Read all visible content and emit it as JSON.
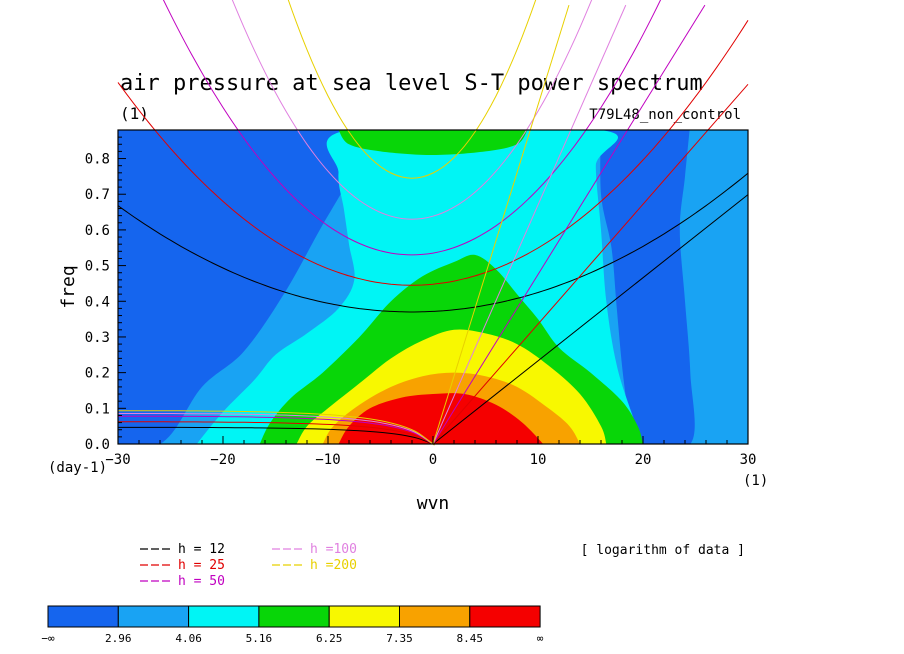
{
  "chart_data": {
    "type": "heatmap",
    "title": "air pressure at sea level S-T power spectrum",
    "title_units": "(1)",
    "subtitle_right": "T79L48_non_control",
    "xlabel": "wvn",
    "ylabel": "freq",
    "x_unit": "(1)",
    "y_unit": "(day-1)",
    "xlim": [
      -30,
      30
    ],
    "ylim": [
      0,
      0.88
    ],
    "xticks": [
      -30,
      -20,
      -10,
      0,
      10,
      20,
      30
    ],
    "xtick_labels": [
      "−30",
      "−20",
      "−10",
      "0",
      "10",
      "20",
      "30"
    ],
    "yticks": [
      0,
      0.1,
      0.2,
      0.3,
      0.4,
      0.5,
      0.6,
      0.7,
      0.8
    ],
    "ytick_labels": [
      "0.0",
      "0.1",
      "0.2",
      "0.3",
      "0.4",
      "0.5",
      "0.6",
      "0.7",
      "0.8"
    ],
    "note": "[ logarithm of data ]",
    "colorbar": {
      "colors": [
        "#1565ee",
        "#19a3f3",
        "#00f5f5",
        "#08d608",
        "#f8f800",
        "#f8a200",
        "#f50000"
      ],
      "edge_labels": [
        "−∞",
        "2.96",
        "4.06",
        "5.16",
        "6.25",
        "7.35",
        "8.45",
        "∞"
      ]
    },
    "contour_bands": [
      {
        "level": 2.96,
        "color": "#19a3f3",
        "x": [
          -32,
          -26,
          -22,
          -18,
          -14,
          -10,
          -6,
          -2,
          2,
          6,
          10,
          14,
          18,
          22,
          24,
          25,
          32
        ],
        "y_top": [
          0,
          0,
          0.16,
          0.26,
          0.43,
          0.64,
          0.82,
          0.9,
          0.9,
          0.9,
          0.9,
          0.9,
          0.9,
          0.9,
          0.9,
          0.9,
          0.9
        ],
        "right_cut": [
          [
            16,
            0.9
          ],
          [
            16,
            0.7
          ],
          [
            17,
            0.55
          ],
          [
            17.5,
            0.38
          ],
          [
            18,
            0.22
          ],
          [
            18.5,
            0.1
          ],
          [
            19,
            0
          ],
          [
            24.5,
            0
          ],
          [
            24.5,
            0.2
          ],
          [
            24,
            0.4
          ],
          [
            23.5,
            0.6
          ],
          [
            24,
            0.75
          ],
          [
            24.5,
            0.9
          ]
        ]
      },
      {
        "level": 4.06,
        "color": "#00f5f5",
        "points": [
          [
            -22.5,
            0
          ],
          [
            -20,
            0.09
          ],
          [
            -17,
            0.18
          ],
          [
            -15,
            0.25
          ],
          [
            -12,
            0.31
          ],
          [
            -9,
            0.38
          ],
          [
            -7.5,
            0.46
          ],
          [
            -8,
            0.56
          ],
          [
            -8.5,
            0.66
          ],
          [
            -9,
            0.76
          ],
          [
            -8,
            0.88
          ],
          [
            16,
            0.88
          ],
          [
            15.5,
            0.78
          ],
          [
            16,
            0.6
          ],
          [
            16.5,
            0.4
          ],
          [
            17.5,
            0.22
          ],
          [
            19,
            0.08
          ],
          [
            20,
            0
          ]
        ]
      },
      {
        "level": 5.16,
        "color": "#08d608",
        "points": [
          [
            -16.5,
            0
          ],
          [
            -15.5,
            0.06
          ],
          [
            -13.5,
            0.13
          ],
          [
            -10.5,
            0.2
          ],
          [
            -7,
            0.3
          ],
          [
            -4,
            0.4
          ],
          [
            -1,
            0.47
          ],
          [
            2,
            0.51
          ],
          [
            4,
            0.53
          ],
          [
            6,
            0.49
          ],
          [
            8,
            0.42
          ],
          [
            10,
            0.35
          ],
          [
            12,
            0.27
          ],
          [
            15,
            0.2
          ],
          [
            18,
            0.12
          ],
          [
            19.5,
            0.05
          ],
          [
            20,
            0
          ]
        ],
        "top_blob": [
          [
            -9,
            0.88
          ],
          [
            -8,
            0.84
          ],
          [
            -5,
            0.82
          ],
          [
            0,
            0.81
          ],
          [
            5,
            0.82
          ],
          [
            8,
            0.84
          ],
          [
            9,
            0.88
          ]
        ]
      },
      {
        "level": 6.25,
        "color": "#f8f800",
        "points": [
          [
            -13,
            0
          ],
          [
            -12,
            0.05
          ],
          [
            -10,
            0.1
          ],
          [
            -7,
            0.17
          ],
          [
            -4,
            0.24
          ],
          [
            -1,
            0.29
          ],
          [
            2,
            0.32
          ],
          [
            5,
            0.31
          ],
          [
            8,
            0.28
          ],
          [
            11,
            0.22
          ],
          [
            14,
            0.14
          ],
          [
            16,
            0.05
          ],
          [
            16.5,
            0
          ]
        ]
      },
      {
        "level": 7.35,
        "color": "#f8a200",
        "points": [
          [
            -10.5,
            0
          ],
          [
            -9.5,
            0.05
          ],
          [
            -7,
            0.11
          ],
          [
            -4,
            0.16
          ],
          [
            -1,
            0.19
          ],
          [
            2,
            0.2
          ],
          [
            5,
            0.19
          ],
          [
            8,
            0.16
          ],
          [
            11,
            0.1
          ],
          [
            13,
            0.05
          ],
          [
            14,
            0
          ]
        ]
      },
      {
        "level": 8.45,
        "color": "#f50000",
        "points": [
          [
            -9,
            0
          ],
          [
            -8,
            0.05
          ],
          [
            -6,
            0.1
          ],
          [
            -3,
            0.13
          ],
          [
            0,
            0.14
          ],
          [
            3,
            0.14
          ],
          [
            6,
            0.11
          ],
          [
            8.5,
            0.06
          ],
          [
            10.5,
            0
          ]
        ]
      }
    ],
    "dispersion_legend": [
      {
        "label": "h = 12",
        "color": "#000000"
      },
      {
        "label": "h = 25",
        "color": "#e00000"
      },
      {
        "label": "h = 50",
        "color": "#c000c0"
      },
      {
        "label": "h =100",
        "color": "#e080e0"
      },
      {
        "label": "h =200",
        "color": "#e8d000"
      }
    ],
    "dispersion_series": [
      {
        "name": "h = 12",
        "kelvin_slope": 0.0233,
        "ig_min": 0.37,
        "ig_beta": 0.00038,
        "rossby_a": 0.06
      },
      {
        "name": "h = 25",
        "kelvin_slope": 0.0336,
        "ig_min": 0.445,
        "ig_beta": 0.00058,
        "rossby_a": 0.08
      },
      {
        "name": "h = 50",
        "kelvin_slope": 0.0475,
        "ig_min": 0.53,
        "ig_beta": 0.00085,
        "rossby_a": 0.1
      },
      {
        "name": "h =100",
        "kelvin_slope": 0.067,
        "ig_min": 0.63,
        "ig_beta": 0.0012,
        "rossby_a": 0.11
      },
      {
        "name": "h =200",
        "kelvin_slope": 0.095,
        "ig_min": 0.745,
        "ig_beta": 0.0018,
        "rossby_a": 0.12
      }
    ]
  }
}
